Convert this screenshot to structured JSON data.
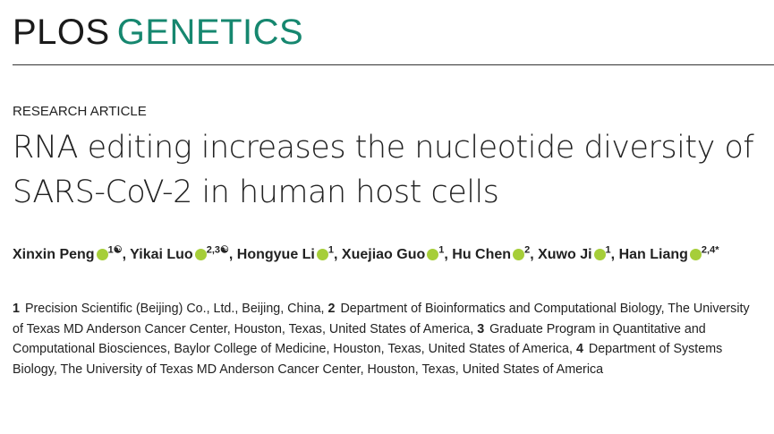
{
  "header": {
    "journal_prefix": "PLOS",
    "journal_name": "GENETICS"
  },
  "article": {
    "type": "RESEARCH ARTICLE",
    "title": "RNA editing increases the nucleotide diversity of SARS-CoV-2 in human host cells",
    "authors": [
      {
        "name": "Xinxin Peng",
        "sup": "1☯",
        "punct": ","
      },
      {
        "name": "Yikai Luo",
        "sup": "2,3☯",
        "punct": ","
      },
      {
        "name": "Hongyue Li",
        "sup": "1",
        "punct": ","
      },
      {
        "name": "Xuejiao Guo",
        "sup": "1",
        "punct": ","
      },
      {
        "name": "Hu Chen",
        "sup": "2",
        "punct": ","
      },
      {
        "name": "Xuwo Ji",
        "sup": "1",
        "punct": ","
      },
      {
        "name": "Han Liang",
        "sup": "2,4*",
        "punct": ""
      }
    ],
    "affiliations": [
      {
        "num": "1",
        "text": "Precision Scientific (Beijing) Co., Ltd., Beijing, China,"
      },
      {
        "num": "2",
        "text": "Department of Bioinformatics and Computational Biology, The University of Texas MD Anderson Cancer Center, Houston, Texas, United States of America,"
      },
      {
        "num": "3",
        "text": "Graduate Program in Quantitative and Computational Biosciences, Baylor College of Medicine, Houston, Texas, United States of America,"
      },
      {
        "num": "4",
        "text": "Department of Systems Biology, The University of Texas MD Anderson Cancer Center, Houston, Texas, United States of America"
      }
    ]
  }
}
